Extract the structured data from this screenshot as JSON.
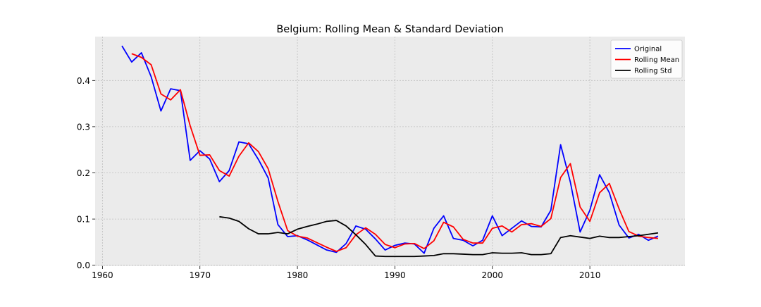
{
  "chart_data": {
    "type": "line",
    "title": "Belgium: Rolling Mean & Standard Deviation",
    "xlabel": "",
    "ylabel": "",
    "xlim": [
      1959.25,
      2019.75
    ],
    "ylim": [
      -0.002,
      0.495
    ],
    "x_ticks": [
      1960,
      1970,
      1980,
      1990,
      2000,
      2010
    ],
    "y_ticks": [
      0.0,
      0.1,
      0.2,
      0.3,
      0.4
    ],
    "y_tick_labels": [
      "0.0",
      "0.1",
      "0.2",
      "0.3",
      "0.4"
    ],
    "grid": true,
    "legend_position": "top-right",
    "series": [
      {
        "name": "Original",
        "color": "#0000ff",
        "x": [
          1962,
          1963,
          1964,
          1965,
          1966,
          1967,
          1968,
          1969,
          1970,
          1971,
          1972,
          1973,
          1974,
          1975,
          1976,
          1977,
          1978,
          1979,
          1980,
          1981,
          1982,
          1983,
          1984,
          1985,
          1986,
          1987,
          1988,
          1989,
          1990,
          1991,
          1992,
          1993,
          1994,
          1995,
          1996,
          1997,
          1998,
          1999,
          2000,
          2001,
          2002,
          2003,
          2004,
          2005,
          2006,
          2007,
          2008,
          2009,
          2010,
          2011,
          2012,
          2013,
          2014,
          2015,
          2016,
          2017
        ],
        "values": [
          0.475,
          0.44,
          0.46,
          0.408,
          0.334,
          0.382,
          0.378,
          0.227,
          0.248,
          0.23,
          0.181,
          0.205,
          0.267,
          0.263,
          0.229,
          0.189,
          0.088,
          0.062,
          0.064,
          0.055,
          0.044,
          0.033,
          0.028,
          0.047,
          0.085,
          0.078,
          0.057,
          0.033,
          0.043,
          0.048,
          0.046,
          0.026,
          0.08,
          0.107,
          0.058,
          0.054,
          0.042,
          0.054,
          0.107,
          0.064,
          0.08,
          0.096,
          0.084,
          0.083,
          0.119,
          0.261,
          0.18,
          0.072,
          0.119,
          0.196,
          0.157,
          0.087,
          0.059,
          0.067,
          0.054,
          0.063
        ]
      },
      {
        "name": "Rolling Mean",
        "color": "#ff0000",
        "x": [
          1963,
          1964,
          1965,
          1966,
          1967,
          1968,
          1969,
          1970,
          1971,
          1972,
          1973,
          1974,
          1975,
          1976,
          1977,
          1978,
          1979,
          1980,
          1981,
          1982,
          1983,
          1984,
          1985,
          1986,
          1987,
          1988,
          1989,
          1990,
          1991,
          1992,
          1993,
          1994,
          1995,
          1996,
          1997,
          1998,
          1999,
          2000,
          2001,
          2002,
          2003,
          2004,
          2005,
          2006,
          2007,
          2008,
          2009,
          2010,
          2011,
          2012,
          2013,
          2014,
          2015,
          2016,
          2017
        ],
        "values": [
          0.458,
          0.45,
          0.434,
          0.371,
          0.358,
          0.38,
          0.302,
          0.238,
          0.239,
          0.205,
          0.193,
          0.236,
          0.265,
          0.246,
          0.209,
          0.138,
          0.075,
          0.063,
          0.059,
          0.049,
          0.039,
          0.03,
          0.038,
          0.066,
          0.081,
          0.067,
          0.045,
          0.038,
          0.046,
          0.047,
          0.036,
          0.053,
          0.093,
          0.083,
          0.056,
          0.048,
          0.048,
          0.08,
          0.085,
          0.072,
          0.088,
          0.09,
          0.084,
          0.101,
          0.19,
          0.22,
          0.126,
          0.095,
          0.157,
          0.177,
          0.122,
          0.073,
          0.063,
          0.06,
          0.058
        ]
      },
      {
        "name": "Rolling Std",
        "color": "#000000",
        "x": [
          1972,
          1973,
          1974,
          1975,
          1976,
          1977,
          1978,
          1979,
          1980,
          1981,
          1982,
          1983,
          1984,
          1985,
          1986,
          1987,
          1988,
          1989,
          1990,
          1991,
          1992,
          1993,
          1994,
          1995,
          1996,
          1997,
          1998,
          1999,
          2000,
          2001,
          2002,
          2003,
          2004,
          2005,
          2006,
          2007,
          2008,
          2009,
          2010,
          2011,
          2012,
          2013,
          2014,
          2015,
          2016,
          2017
        ],
        "values": [
          0.105,
          0.102,
          0.095,
          0.079,
          0.068,
          0.068,
          0.071,
          0.068,
          0.078,
          0.084,
          0.089,
          0.095,
          0.097,
          0.085,
          0.066,
          0.045,
          0.02,
          0.019,
          0.019,
          0.019,
          0.019,
          0.02,
          0.021,
          0.025,
          0.025,
          0.024,
          0.023,
          0.023,
          0.027,
          0.026,
          0.026,
          0.027,
          0.023,
          0.023,
          0.025,
          0.06,
          0.064,
          0.061,
          0.058,
          0.063,
          0.06,
          0.06,
          0.062,
          0.064,
          0.067,
          0.07
        ]
      }
    ]
  }
}
